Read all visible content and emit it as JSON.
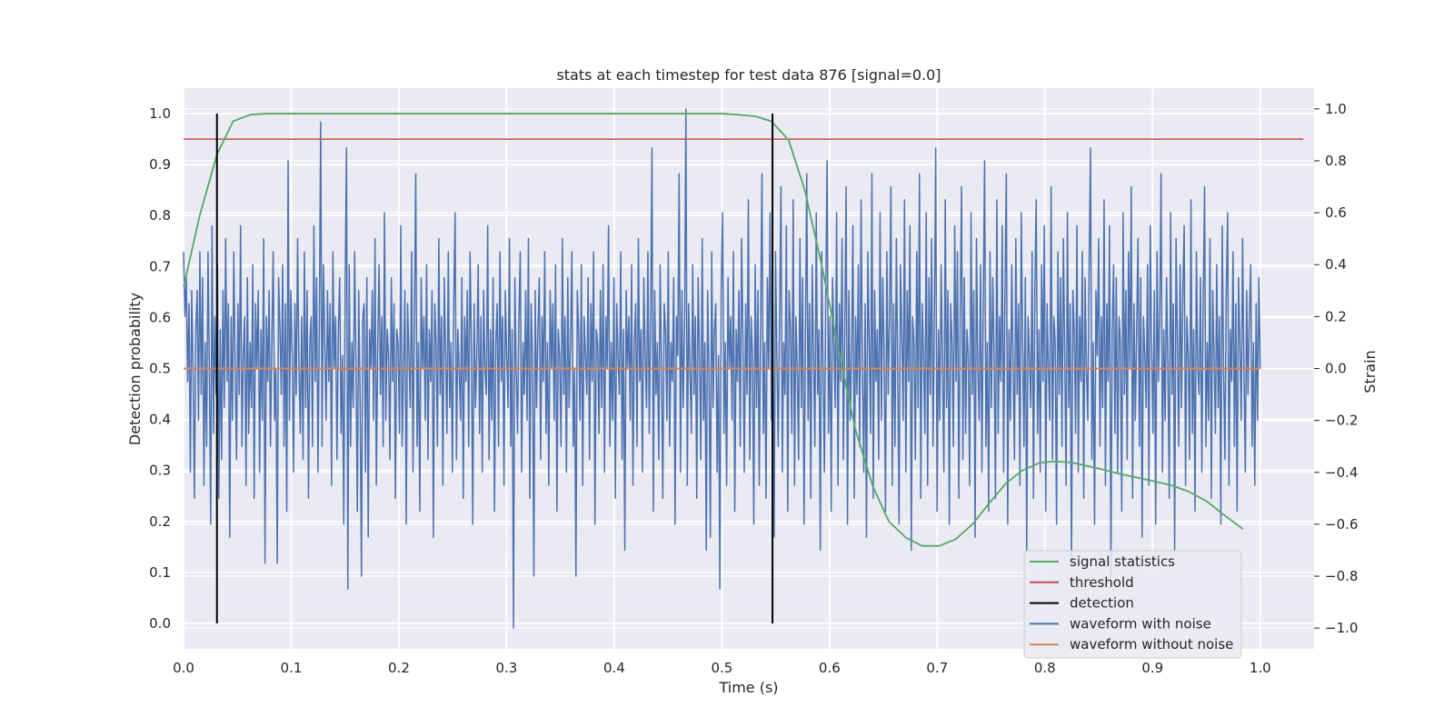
{
  "chart_data": {
    "type": "line",
    "title": "stats at each timestep for test data 876 [signal=0.0]",
    "xlabel": "Time (s)",
    "ylabel": "Detection probability",
    "y2label": "Strain",
    "xlim": [
      0.0,
      1.05
    ],
    "ylim": [
      -0.05,
      1.05
    ],
    "y2lim": [
      -1.08,
      1.08
    ],
    "xticks": [
      "0.0",
      "0.1",
      "0.2",
      "0.3",
      "0.4",
      "0.5",
      "0.6",
      "0.7",
      "0.8",
      "0.9",
      "1.0"
    ],
    "yticks": [
      "0.0",
      "0.1",
      "0.2",
      "0.3",
      "0.4",
      "0.5",
      "0.6",
      "0.7",
      "0.8",
      "0.9",
      "1.0"
    ],
    "y2ticks": [
      "−1.0",
      "−0.8",
      "−0.6",
      "−0.4",
      "−0.2",
      "0.0",
      "0.2",
      "0.4",
      "0.6",
      "0.8",
      "1.0"
    ],
    "grid": true,
    "legend_position": "lower-right",
    "colors": {
      "background": "#eaeaf2",
      "grid": "#ffffff",
      "signal_statistics": "#55a868",
      "threshold": "#c44e52",
      "detection": "#000000",
      "waveform_with_noise": "#4c72b0",
      "waveform_without_noise": "#dd8452"
    },
    "series": [
      {
        "name": "signal statistics",
        "axis": "left",
        "x": [
          0.0,
          0.015,
          0.031,
          0.046,
          0.062,
          0.077,
          0.1,
          0.2,
          0.3,
          0.4,
          0.45,
          0.5,
          0.515,
          0.531,
          0.546,
          0.562,
          0.577,
          0.593,
          0.608,
          0.624,
          0.64,
          0.655,
          0.671,
          0.686,
          0.702,
          0.717,
          0.733,
          0.748,
          0.764,
          0.779,
          0.795,
          0.81,
          0.826,
          0.841,
          0.857,
          0.872,
          0.888,
          0.903,
          0.919,
          0.934,
          0.95,
          0.965,
          0.984
        ],
        "y": [
          0.66,
          0.8,
          0.92,
          0.985,
          0.998,
          1.0,
          1.0,
          1.0,
          1.0,
          1.0,
          1.0,
          1.0,
          0.998,
          0.995,
          0.985,
          0.948,
          0.85,
          0.7,
          0.54,
          0.38,
          0.27,
          0.2,
          0.168,
          0.152,
          0.152,
          0.165,
          0.195,
          0.235,
          0.275,
          0.3,
          0.315,
          0.318,
          0.315,
          0.308,
          0.3,
          0.292,
          0.285,
          0.278,
          0.27,
          0.258,
          0.24,
          0.215,
          0.185
        ]
      },
      {
        "name": "threshold",
        "axis": "left",
        "x": [
          0.0,
          1.04
        ],
        "y": [
          0.95,
          0.95
        ]
      },
      {
        "name": "detection",
        "axis": "left",
        "segments": [
          {
            "x": 0.031,
            "y": [
              0.0,
              1.0
            ]
          },
          {
            "x": 0.547,
            "y": [
              0.0,
              1.0
            ]
          }
        ]
      },
      {
        "name": "waveform with noise",
        "axis": "right",
        "x_start": 0.0,
        "x_end": 1.0,
        "y": [
          0.45,
          0.2,
          0.35,
          -0.05,
          0.25,
          -0.4,
          0.3,
          0.0,
          -0.5,
          0.15,
          0.3,
          -0.2,
          0.45,
          -0.1,
          0.35,
          -0.45,
          0.1,
          -0.3,
          0.45,
          0.0,
          -0.6,
          0.55,
          -0.25,
          0.2,
          -0.1,
          0.4,
          -0.5,
          0.15,
          -0.35,
          0.3,
          -0.15,
          0.5,
          -0.05,
          0.25,
          -0.65,
          0.2,
          -0.2,
          0.45,
          0.0,
          -0.35,
          0.25,
          -0.1,
          0.55,
          -0.3,
          0.05,
          0.2,
          -0.45,
          0.35,
          -0.25,
          0.1,
          -0.15,
          0.4,
          -0.5,
          0.25,
          0.0,
          0.3,
          -0.4,
          0.15,
          -0.2,
          0.5,
          -0.75,
          0.2,
          -0.05,
          0.3,
          -0.3,
          0.1,
          0.45,
          -0.2,
          0.0,
          -0.75,
          0.35,
          0.15,
          -0.1,
          0.4,
          -0.3,
          0.25,
          -0.55,
          0.8,
          -0.2,
          0.3,
          0.05,
          -0.4,
          0.25,
          -0.1,
          0.5,
          0.0,
          -0.25,
          0.2,
          -0.35,
          0.45,
          -0.15,
          0.3,
          -0.5,
          0.1,
          0.2,
          -0.3,
          0.55,
          -0.05,
          0.35,
          -0.4,
          0.15,
          0.95,
          -0.3,
          0.4,
          0.1,
          -0.2,
          0.3,
          -0.05,
          0.25,
          -0.45,
          0.45,
          0.0,
          0.2,
          -0.35,
          0.15,
          0.35,
          -0.25,
          0.05,
          -0.6,
          0.3,
          0.85,
          -0.85,
          0.4,
          -0.3,
          0.1,
          -0.15,
          0.45,
          0.0,
          -0.55,
          0.3,
          -0.1,
          -0.8,
          0.2,
          0.25,
          -0.4,
          0.35,
          -0.65,
          0.15,
          0.0,
          0.3,
          -0.2,
          0.5,
          -0.45,
          0.1,
          0.4,
          -0.1,
          0.2,
          -0.3,
          0.6,
          -0.2,
          0.15,
          0.05,
          -0.35,
          0.35,
          -0.05,
          0.25,
          -0.5,
          0.15,
          0.1,
          -0.25,
          0.55,
          -0.3,
          0.0,
          0.3,
          -0.6,
          0.25,
          0.05,
          -0.15,
          0.45,
          -0.4,
          0.2,
          0.75,
          -0.3,
          0.1,
          -0.55,
          0.35,
          0.0,
          0.2,
          -0.2,
          0.4,
          -0.35,
          0.15,
          -0.05,
          0.3,
          -0.65,
          0.25,
          0.1,
          -0.3,
          0.5,
          -0.1,
          0.2,
          -0.45,
          0.35,
          0.05,
          -0.25,
          0.45,
          -0.15,
          0.1,
          -0.4,
          0.25,
          0.6,
          -0.35,
          0.15,
          0.0,
          -0.2,
          0.35,
          -0.5,
          0.2,
          -0.05,
          0.3,
          -0.3,
          0.45,
          0.1,
          -0.6,
          0.25,
          -0.15,
          0.05,
          0.4,
          -0.25,
          0.2,
          -0.4,
          0.3,
          0.0,
          -0.1,
          0.55,
          -0.35,
          0.15,
          -0.2,
          0.35,
          -0.55,
          0.1,
          0.25,
          -0.3,
          0.45,
          -0.05,
          0.2,
          -0.45,
          0.3,
          0.05,
          -0.15,
          0.5,
          -0.3,
          0.15,
          -1.0,
          0.35,
          0.0,
          -0.25,
          0.2,
          0.45,
          -0.4,
          0.1,
          -0.1,
          0.3,
          -0.2,
          0.5,
          -0.5,
          0.25,
          0.05,
          -0.8,
          0.3,
          -0.15,
          0.15,
          0.35,
          -0.35,
          0.2,
          -0.05,
          0.45,
          -0.25,
          0.1,
          -0.45,
          0.3,
          0.0,
          0.25,
          -0.2,
          0.4,
          -0.55,
          0.15,
          0.05,
          -0.3,
          0.5,
          -0.1,
          0.2,
          -0.4,
          0.35,
          -0.15,
          0.1,
          0.45,
          -0.3,
          0.0,
          -0.8,
          0.3,
          0.15,
          -0.2,
          0.4,
          -0.45,
          0.2,
          0.05,
          -0.1,
          0.35,
          -0.35,
          0.25,
          -0.05,
          0.45,
          -0.6,
          0.15,
          0.1,
          -0.25,
          0.3,
          -0.15,
          0.4,
          -0.4,
          0.2,
          0.0,
          0.55,
          -0.3,
          0.1,
          -0.2,
          0.35,
          -0.5,
          0.25,
          0.05,
          -0.1,
          0.45,
          -0.35,
          0.15,
          -0.7,
          0.3,
          0.0,
          0.2,
          -0.2,
          0.4,
          -0.45,
          0.1,
          0.25,
          -0.3,
          0.5,
          -0.05,
          0.15,
          -0.4,
          0.35,
          0.05,
          -0.15,
          0.45,
          -0.25,
          0.2,
          0.85,
          -0.55,
          0.3,
          -0.1,
          0.1,
          -0.35,
          0.4,
          0.0,
          -0.5,
          0.25,
          0.15,
          -0.2,
          0.45,
          -0.3,
          0.1,
          -0.05,
          0.35,
          -0.6,
          0.2,
          0.05,
          0.75,
          -0.4,
          0.3,
          -0.15,
          0.15,
          1.0,
          -0.45,
          0.25,
          0.0,
          -0.25,
          0.4,
          -0.1,
          0.2,
          -0.5,
          0.35,
          0.05,
          -0.35,
          0.5,
          -0.2,
          0.1,
          -0.7,
          0.3,
          0.0,
          -0.65,
          0.45,
          -0.15,
          0.15,
          0.25,
          -0.4,
          0.05,
          -0.85,
          0.3,
          0.6,
          -0.25,
          0.1,
          -0.45,
          0.35,
          0.0,
          0.2,
          -0.2,
          0.45,
          -0.55,
          0.15,
          -0.05,
          0.3,
          -0.3,
          0.5,
          0.1,
          -0.4,
          0.25,
          -0.1,
          0.65,
          -0.35,
          0.2,
          0.05,
          -0.6,
          0.4,
          -0.15,
          0.3,
          -0.45,
          0.15,
          0.75,
          -0.25,
          0.1,
          -0.5,
          0.35,
          0.0,
          0.6,
          -0.2,
          0.25,
          -0.65,
          0.45,
          0.05,
          -0.3,
          0.2,
          0.7,
          -0.4,
          0.1,
          -0.1,
          0.55,
          -0.55,
          0.3,
          0.15,
          -0.25,
          0.65,
          -0.45,
          0.2,
          0.0,
          -0.35,
          0.5,
          -0.15,
          0.35,
          -0.6,
          0.1,
          0.75,
          -0.2,
          0.25,
          -0.5,
          0.4,
          0.05,
          -0.3,
          0.6,
          -0.1,
          0.15,
          -0.7,
          0.45,
          0.0,
          -0.4,
          0.3,
          0.8,
          -0.25,
          0.2,
          -0.55,
          0.35,
          0.1,
          -0.15,
          0.6,
          -0.45,
          0.25,
          -0.05,
          0.5,
          -0.35,
          0.15,
          0.7,
          -0.6,
          0.3,
          -0.2,
          0.05,
          0.55,
          -0.5,
          0.2,
          -0.1,
          0.4,
          -0.3,
          0.65,
          0.0,
          -0.4,
          0.25,
          -0.65,
          0.45,
          0.1,
          -0.25,
          0.75,
          -0.5,
          0.3,
          -0.05,
          0.15,
          -0.35,
          0.6,
          -0.2,
          0.35,
          0.05,
          -0.55,
          0.45,
          -0.1,
          0.2,
          0.7,
          -0.45,
          0.25,
          -0.3,
          0.5,
          0.0,
          -0.6,
          0.4,
          0.15,
          -0.2,
          0.65,
          -0.4,
          0.3,
          -0.05,
          0.55,
          -0.7,
          0.2,
          0.1,
          -0.35,
          0.45,
          -0.15,
          0.75,
          -0.5,
          0.25,
          0.05,
          -0.25,
          0.6,
          -0.45,
          0.35,
          -0.1,
          0.5,
          -0.3,
          0.2,
          0.85,
          -0.55,
          0.15,
          -0.2,
          0.4,
          0.0,
          -0.4,
          0.65,
          -0.15,
          0.3,
          -0.6,
          0.25,
          0.1,
          -0.3,
          0.55,
          -0.05,
          0.45,
          -0.5,
          0.2,
          0.7,
          -0.35,
          0.35,
          -0.25,
          0.15,
          0.05,
          -0.45,
          0.6,
          -0.1,
          0.3,
          -0.65,
          0.5,
          0.0,
          -0.2,
          0.4,
          -0.4,
          0.25,
          0.8,
          -0.3,
          0.1,
          -0.55,
          0.45,
          -0.15,
          0.35,
          0.05,
          -0.5,
          0.65,
          -0.25,
          0.2,
          -0.05,
          0.55,
          -0.4,
          0.3,
          0.75,
          -0.6,
          0.15,
          -0.2,
          0.4,
          0.0,
          -0.35,
          0.5,
          -0.1,
          0.25,
          -0.45,
          0.6,
          0.1,
          -0.3,
          0.35,
          -0.7,
          0.2,
          0.05,
          -0.15,
          0.45,
          -0.5,
          0.3,
          0.65,
          -0.25,
          0.15,
          -0.4,
          0.4,
          -0.05,
          0.55,
          -0.55,
          0.25,
          0.0,
          -0.2,
          0.7,
          -0.35,
          0.2,
          0.1,
          -0.6,
          0.45,
          -0.1,
          0.35,
          -0.3,
          0.5,
          0.05,
          -0.45,
          0.6,
          -0.15,
          0.25,
          -0.75,
          0.3,
          0.15,
          -0.25,
          0.55,
          -0.4,
          0.2,
          -0.05,
          0.45,
          -0.5,
          0.35,
          0.0,
          -0.2,
          0.4,
          0.85,
          -0.35,
          0.1,
          -0.6,
          0.3,
          0.05,
          0.5,
          -0.3,
          0.2,
          -0.15,
          0.65,
          -0.45,
          0.25,
          -0.05,
          0.55,
          -0.8,
          0.15,
          0.4,
          -0.25,
          0.35,
          -0.4,
          0.2,
          0.1,
          -0.55,
          0.6,
          -0.1,
          0.3,
          -0.35,
          0.45,
          0.0,
          0.7,
          -0.5,
          0.25,
          -0.2,
          0.15,
          0.5,
          -0.3,
          0.35,
          -0.65,
          0.2,
          0.05,
          -0.15,
          0.4,
          -0.45,
          0.55,
          0.1,
          -0.25,
          0.3,
          -0.6,
          0.45,
          -0.05,
          0.2,
          0.75,
          -0.4,
          0.15,
          -0.2,
          0.35,
          0.0,
          -0.5,
          0.6,
          -0.1,
          0.25,
          -0.7,
          0.5,
          0.1,
          -0.3,
          0.4,
          -0.15,
          0.3,
          0.55,
          -0.45,
          0.2,
          0.05,
          -0.35,
          0.65,
          -0.25,
          0.15,
          -0.55,
          0.45,
          0.0,
          -0.1,
          0.35,
          -0.4,
          0.25,
          0.7,
          -0.3,
          0.1,
          -0.2,
          0.5,
          -0.5,
          0.3,
          0.05,
          -0.25,
          0.4,
          -0.15,
          0.2,
          -0.6,
          0.55,
          0.0,
          -0.35,
          0.3,
          0.6,
          -0.45,
          0.15,
          -0.05,
          0.45,
          -0.3,
          0.25,
          -0.55,
          0.35,
          0.1,
          -0.2,
          0.5,
          0.0,
          -0.4,
          0.3,
          -0.1,
          0.2,
          0.4,
          -0.3,
          0.1,
          -0.45,
          0.25,
          -0.2,
          0.35,
          0.0
        ]
      },
      {
        "name": "waveform without noise",
        "axis": "right",
        "x": [
          0.0,
          1.0
        ],
        "y": [
          0.0,
          0.0
        ]
      }
    ],
    "legend": [
      "signal statistics",
      "threshold",
      "detection",
      "waveform with noise",
      "waveform without noise"
    ]
  }
}
